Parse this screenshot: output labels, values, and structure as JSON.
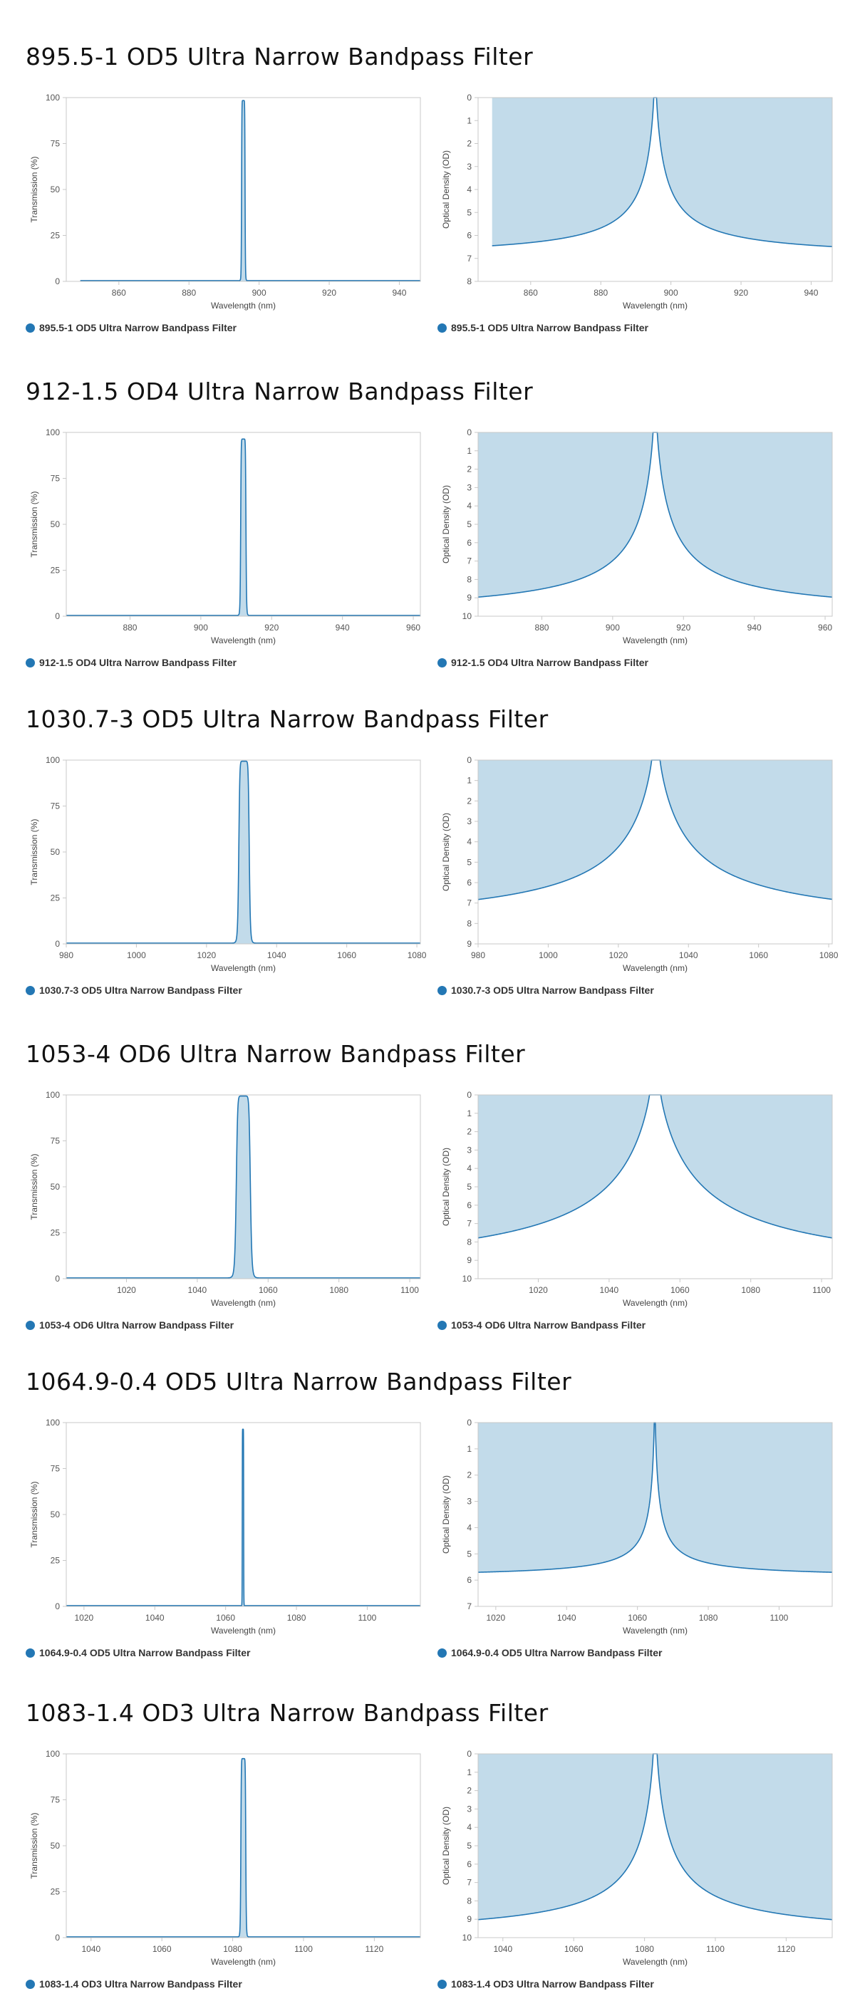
{
  "colors": {
    "series": "#2377b4",
    "fill": "#c2dbea",
    "axis": "#c8c8c8",
    "tick_text": "#555555",
    "label_text": "#444444"
  },
  "sections": [
    {
      "title": "895.5-1 OD5 Ultra Narrow Bandpass Filter",
      "charts": [
        {
          "type": "line",
          "quantity": "transmission",
          "xlabel": "Wavelength (nm)",
          "ylabel": "Transmission (%)",
          "xlim": [
            845,
            946
          ],
          "ylim": [
            0,
            100
          ],
          "xticks": [
            860,
            880,
            900,
            920,
            940
          ],
          "yticks": [
            0,
            25,
            50,
            75,
            100
          ],
          "center": 895.5,
          "fwhm": 1,
          "peak": 98,
          "od_max": 7,
          "data_range": [
            849,
            946
          ],
          "series_name": "895.5-1 OD5 Ultra Narrow Bandpass Filter"
        },
        {
          "type": "area",
          "quantity": "optical_density",
          "xlabel": "Wavelength (nm)",
          "ylabel": "Optical Density (OD)",
          "xlim": [
            845,
            946
          ],
          "ylim": [
            0,
            8
          ],
          "y_inverted": true,
          "xticks": [
            860,
            880,
            900,
            920,
            940
          ],
          "yticks": [
            0,
            1,
            2,
            3,
            4,
            5,
            6,
            7,
            8
          ],
          "center": 895.5,
          "fwhm": 1,
          "od_max": 7,
          "data_range": [
            849,
            946
          ],
          "series_name": "895.5-1 OD5 Ultra Narrow Bandpass Filter"
        }
      ]
    },
    {
      "title": "912-1.5 OD4 Ultra Narrow Bandpass Filter",
      "charts": [
        {
          "type": "line",
          "quantity": "transmission",
          "xlabel": "Wavelength (nm)",
          "ylabel": "Transmission (%)",
          "xlim": [
            862,
            962
          ],
          "ylim": [
            0,
            100
          ],
          "xticks": [
            880,
            900,
            920,
            940,
            960
          ],
          "yticks": [
            0,
            25,
            50,
            75,
            100
          ],
          "center": 912,
          "fwhm": 1.5,
          "peak": 96,
          "od_max": 10,
          "data_range": [
            862,
            962
          ],
          "series_name": "912-1.5 OD4 Ultra Narrow Bandpass Filter"
        },
        {
          "type": "area",
          "quantity": "optical_density",
          "xlabel": "Wavelength (nm)",
          "ylabel": "Optical Density (OD)",
          "xlim": [
            862,
            962
          ],
          "ylim": [
            0,
            10
          ],
          "y_inverted": true,
          "xticks": [
            880,
            900,
            920,
            940,
            960
          ],
          "yticks": [
            0,
            1,
            2,
            3,
            4,
            5,
            6,
            7,
            8,
            9,
            10
          ],
          "center": 912,
          "fwhm": 1.5,
          "od_max": 10,
          "data_range": [
            862,
            962
          ],
          "series_name": "912-1.5 OD4 Ultra Narrow Bandpass Filter"
        }
      ]
    },
    {
      "title": "1030.7-3 OD5 Ultra Narrow Bandpass Filter",
      "charts": [
        {
          "type": "line",
          "quantity": "transmission",
          "xlabel": "Wavelength (nm)",
          "ylabel": "Transmission (%)",
          "xlim": [
            980,
            1081
          ],
          "ylim": [
            0,
            100
          ],
          "xticks": [
            980,
            1000,
            1020,
            1040,
            1060,
            1080
          ],
          "yticks": [
            0,
            25,
            50,
            75,
            100
          ],
          "center": 1030.7,
          "fwhm": 3,
          "peak": 99,
          "od_max": 8.3,
          "data_range": [
            980,
            1081
          ],
          "series_name": "1030.7-3 OD5 Ultra Narrow Bandpass Filter"
        },
        {
          "type": "area",
          "quantity": "optical_density",
          "xlabel": "Wavelength (nm)",
          "ylabel": "Optical Density (OD)",
          "xlim": [
            980,
            1081
          ],
          "ylim": [
            0,
            9
          ],
          "y_inverted": true,
          "xticks": [
            980,
            1000,
            1020,
            1040,
            1060,
            1080
          ],
          "yticks": [
            0,
            1,
            2,
            3,
            4,
            5,
            6,
            7,
            8,
            9
          ],
          "center": 1030.7,
          "fwhm": 3,
          "od_max": 8.3,
          "data_range": [
            980,
            1081
          ],
          "series_name": "1030.7-3 OD5 Ultra Narrow Bandpass Filter"
        }
      ]
    },
    {
      "title": "1053-4 OD6 Ultra Narrow Bandpass Filter",
      "charts": [
        {
          "type": "line",
          "quantity": "transmission",
          "xlabel": "Wavelength (nm)",
          "ylabel": "Transmission (%)",
          "xlim": [
            1003,
            1103
          ],
          "ylim": [
            0,
            100
          ],
          "xticks": [
            1020,
            1040,
            1060,
            1080,
            1100
          ],
          "yticks": [
            0,
            25,
            50,
            75,
            100
          ],
          "center": 1053,
          "fwhm": 4,
          "peak": 99,
          "od_max": 10,
          "data_range": [
            1003,
            1103
          ],
          "series_name": "1053-4 OD6 Ultra Narrow Bandpass Filter"
        },
        {
          "type": "area",
          "quantity": "optical_density",
          "xlabel": "Wavelength (nm)",
          "ylabel": "Optical Density (OD)",
          "xlim": [
            1003,
            1103
          ],
          "ylim": [
            0,
            10
          ],
          "y_inverted": true,
          "xticks": [
            1020,
            1040,
            1060,
            1080,
            1100
          ],
          "yticks": [
            0,
            1,
            2,
            3,
            4,
            5,
            6,
            7,
            8,
            9,
            10
          ],
          "center": 1053,
          "fwhm": 4,
          "od_max": 10,
          "data_range": [
            1003,
            1103
          ],
          "series_name": "1053-4 OD6 Ultra Narrow Bandpass Filter"
        }
      ]
    },
    {
      "title": "1064.9-0.4 OD5 Ultra Narrow Bandpass Filter",
      "charts": [
        {
          "type": "line",
          "quantity": "transmission",
          "xlabel": "Wavelength (nm)",
          "ylabel": "Transmission (%)",
          "xlim": [
            1015,
            1115
          ],
          "ylim": [
            0,
            100
          ],
          "xticks": [
            1020,
            1040,
            1060,
            1080,
            1100
          ],
          "yticks": [
            0,
            25,
            50,
            75,
            100
          ],
          "center": 1064.9,
          "fwhm": 0.4,
          "peak": 96,
          "od_max": 5.9,
          "data_range": [
            1015,
            1115
          ],
          "series_name": "1064.9-0.4 OD5 Ultra Narrow Bandpass Filter"
        },
        {
          "type": "area",
          "quantity": "optical_density",
          "xlabel": "Wavelength (nm)",
          "ylabel": "Optical Density (OD)",
          "xlim": [
            1015,
            1115
          ],
          "ylim": [
            0,
            7
          ],
          "y_inverted": true,
          "xticks": [
            1020,
            1040,
            1060,
            1080,
            1100
          ],
          "yticks": [
            0,
            1,
            2,
            3,
            4,
            5,
            6,
            7
          ],
          "center": 1064.9,
          "fwhm": 0.4,
          "od_max": 5.9,
          "data_range": [
            1015,
            1115
          ],
          "series_name": "1064.9-0.4 OD5 Ultra Narrow Bandpass Filter"
        }
      ]
    },
    {
      "title": "1083-1.4 OD3 Ultra Narrow Bandpass Filter",
      "charts": [
        {
          "type": "line",
          "quantity": "transmission",
          "xlabel": "Wavelength (nm)",
          "ylabel": "Transmission (%)",
          "xlim": [
            1033,
            1133
          ],
          "ylim": [
            0,
            100
          ],
          "xticks": [
            1040,
            1060,
            1080,
            1100,
            1120
          ],
          "yticks": [
            0,
            25,
            50,
            75,
            100
          ],
          "center": 1083,
          "fwhm": 1.4,
          "peak": 97,
          "od_max": 10,
          "data_range": [
            1033,
            1133
          ],
          "series_name": "1083-1.4 OD3 Ultra Narrow Bandpass Filter"
        },
        {
          "type": "area",
          "quantity": "optical_density",
          "xlabel": "Wavelength (nm)",
          "ylabel": "Optical Density (OD)",
          "xlim": [
            1033,
            1133
          ],
          "ylim": [
            0,
            10
          ],
          "y_inverted": true,
          "xticks": [
            1040,
            1060,
            1080,
            1100,
            1120
          ],
          "yticks": [
            0,
            1,
            2,
            3,
            4,
            5,
            6,
            7,
            8,
            9,
            10
          ],
          "center": 1083,
          "fwhm": 1.4,
          "od_max": 10,
          "data_range": [
            1033,
            1133
          ],
          "series_name": "1083-1.4 OD3 Ultra Narrow Bandpass Filter"
        }
      ]
    }
  ]
}
